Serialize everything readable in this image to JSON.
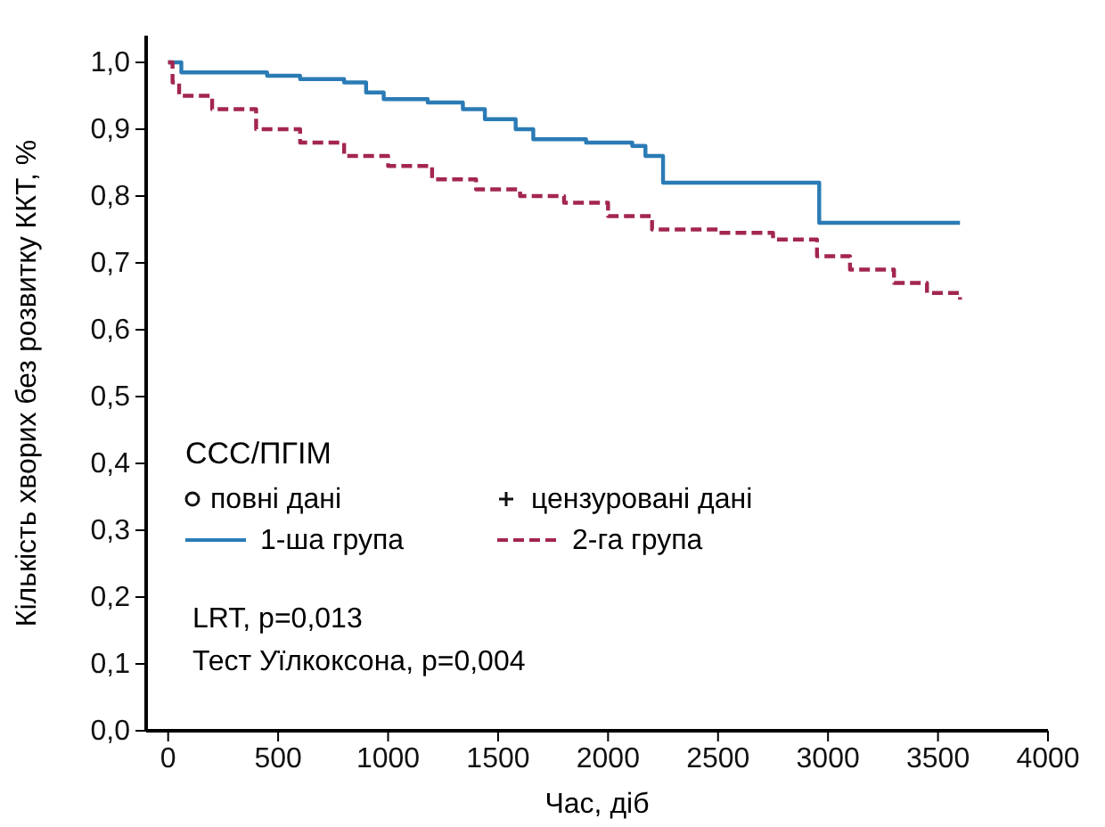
{
  "chart_data": {
    "type": "step",
    "xlabel": "Час, діб",
    "ylabel": "Кількість хворих без розвитку ККТ, %",
    "xlim": [
      -100,
      4000
    ],
    "xticks": [
      0,
      500,
      1000,
      1500,
      2000,
      2500,
      3000,
      3500,
      4000
    ],
    "ylim": [
      0,
      1.04
    ],
    "yticks": [
      {
        "value": 0,
        "label": "0,0"
      },
      {
        "value": 0.1,
        "label": "0,1"
      },
      {
        "value": 0.2,
        "label": "0,2"
      },
      {
        "value": 0.3,
        "label": "0,3"
      },
      {
        "value": 0.4,
        "label": "0,4"
      },
      {
        "value": 0.5,
        "label": "0,5"
      },
      {
        "value": 0.6,
        "label": "0,6"
      },
      {
        "value": 0.7,
        "label": "0,7"
      },
      {
        "value": 0.8,
        "label": "0,8"
      },
      {
        "value": 0.9,
        "label": "0,9"
      },
      {
        "value": 1,
        "label": "1,0"
      }
    ],
    "grid": false,
    "legend": "bottom left",
    "legend_title": "ССС/ПГІМ",
    "annotations": [
      "повні дані",
      "цензуровані дані",
      "LRT, p=0,013",
      "Тест Уїлкоксона, p=0,004"
    ],
    "series": [
      {
        "name": "1-ша група",
        "color": "#2a7bb5",
        "line_style": "solid",
        "x": [
          0,
          60,
          450,
          600,
          800,
          900,
          980,
          1180,
          1340,
          1440,
          1580,
          1660,
          1900,
          2110,
          2170,
          2250,
          2960,
          3600
        ],
        "values": [
          1.0,
          0.985,
          0.98,
          0.975,
          0.97,
          0.955,
          0.945,
          0.94,
          0.93,
          0.915,
          0.9,
          0.885,
          0.88,
          0.875,
          0.86,
          0.82,
          0.76,
          0.76
        ]
      },
      {
        "name": "2-га група",
        "color": "#a3264f",
        "line_style": "dashed",
        "x": [
          0,
          20,
          50,
          200,
          400,
          600,
          800,
          1000,
          1200,
          1400,
          1600,
          1800,
          2000,
          2200,
          2500,
          2750,
          2950,
          3100,
          3300,
          3450,
          3600
        ],
        "values": [
          1.0,
          0.97,
          0.95,
          0.93,
          0.9,
          0.88,
          0.86,
          0.845,
          0.825,
          0.81,
          0.8,
          0.79,
          0.77,
          0.75,
          0.745,
          0.735,
          0.71,
          0.69,
          0.67,
          0.655,
          0.645
        ]
      }
    ]
  }
}
